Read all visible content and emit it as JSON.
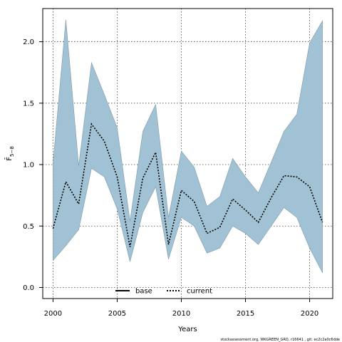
{
  "chart_data": {
    "type": "area",
    "xlabel": "Years",
    "ylabel": "F̄",
    "ylabel_sub": "5−8",
    "xlim": [
      1999.2,
      2021.8
    ],
    "ylim": [
      -0.09,
      2.27
    ],
    "xticks": [
      2000,
      2005,
      2010,
      2015,
      2020
    ],
    "yticks": [
      0.0,
      0.5,
      1.0,
      1.5,
      2.0
    ],
    "ytick_labels": [
      "0.0",
      "0.5",
      "1.0",
      "1.5",
      "2.0"
    ],
    "grid": true,
    "legend_placement": "bottom-center",
    "legend": [
      {
        "label": "base",
        "style": "solid"
      },
      {
        "label": "current",
        "style": "dotted"
      }
    ],
    "x": [
      2000,
      2001,
      2002,
      2003,
      2004,
      2005,
      2006,
      2007,
      2008,
      2009,
      2010,
      2011,
      2012,
      2013,
      2014,
      2015,
      2016,
      2017,
      2018,
      2019,
      2020,
      2021
    ],
    "series": [
      {
        "name": "current",
        "values": [
          0.48,
          0.86,
          0.68,
          1.33,
          1.19,
          0.9,
          0.33,
          0.89,
          1.1,
          0.35,
          0.79,
          0.7,
          0.44,
          0.49,
          0.72,
          0.63,
          0.53,
          0.73,
          0.91,
          0.9,
          0.82,
          0.53
        ],
        "lower": [
          0.22,
          0.34,
          0.47,
          0.97,
          0.9,
          0.64,
          0.21,
          0.61,
          0.82,
          0.23,
          0.57,
          0.5,
          0.28,
          0.32,
          0.5,
          0.44,
          0.35,
          0.5,
          0.65,
          0.57,
          0.32,
          0.12
        ],
        "upper": [
          1.01,
          2.18,
          0.99,
          1.83,
          1.57,
          1.3,
          0.54,
          1.27,
          1.49,
          0.57,
          1.11,
          0.98,
          0.66,
          0.74,
          1.05,
          0.9,
          0.77,
          1.02,
          1.27,
          1.41,
          1.99,
          2.17
        ]
      }
    ],
    "colors": {
      "band_fill": "#a1c2d4",
      "band_stroke": "#7f9aa8",
      "line": "#000000",
      "grid": "#444444"
    }
  },
  "footer": {
    "note": "stockassessment.org, WKGREEN_GRO, r16641 , git: ec2c2a0c6dde"
  }
}
